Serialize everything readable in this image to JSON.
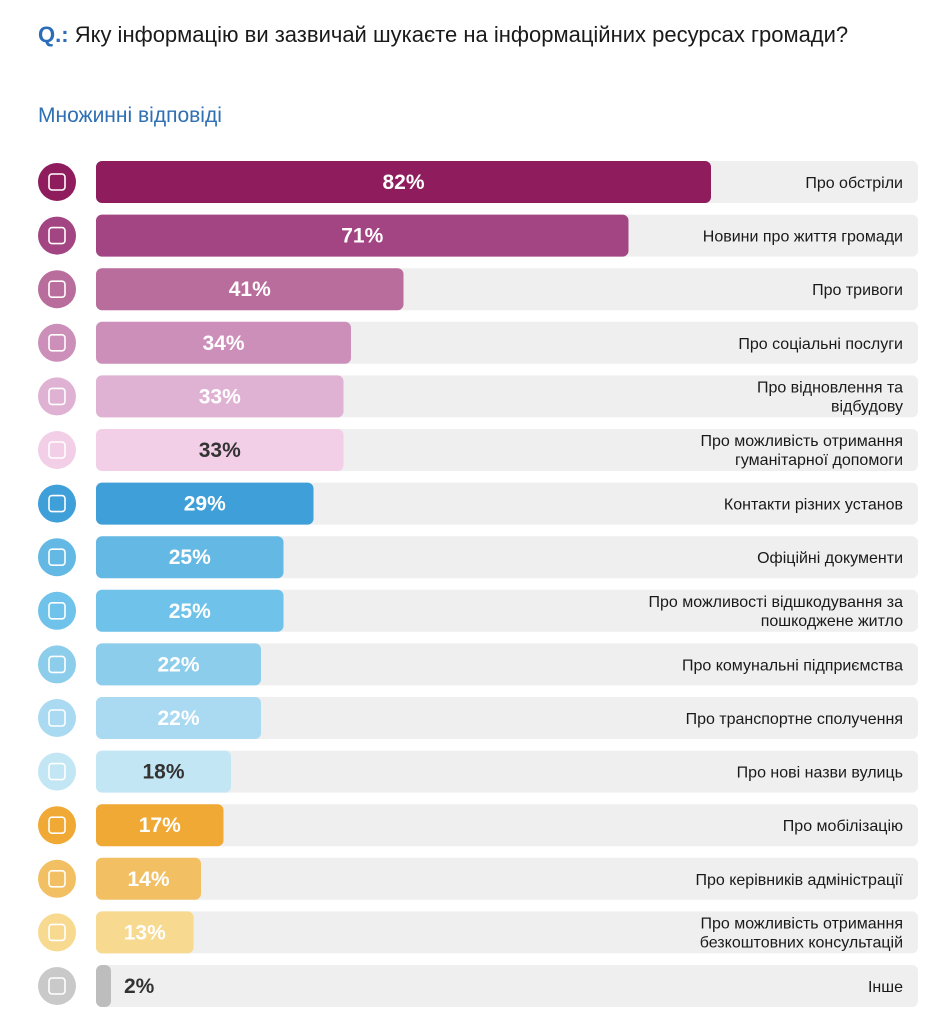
{
  "header": {
    "q_prefix": "Q.:",
    "question": "Яку інформацію ви зазвичай шукаєте на інформаційних ресурсах громади?",
    "subtitle": "Множинні відповіді"
  },
  "chart_data": {
    "type": "bar",
    "orientation": "horizontal",
    "xlim": [
      0,
      100
    ],
    "unit": "%",
    "grid": false,
    "categories": [
      "Про обстріли",
      "Новини про життя громади",
      "Про тривоги",
      "Про соціальні послуги",
      "Про відновлення та відбудову",
      "Про можливість отримання гуманітарної допомоги",
      "Контакти різних установ",
      "Офіційні документи",
      "Про можливості відшкодування за пошкоджене житло",
      "Про комунальні підприємства",
      "Про транспортне сполучення",
      "Про нові назви вулиць",
      "Про мобілізацію",
      "Про керівників адміністрації",
      "Про можливість отримання безкоштовних консультацій",
      "Інше"
    ],
    "label_lines": [
      [
        "Про обстріли"
      ],
      [
        "Новини про життя громади"
      ],
      [
        "Про тривоги"
      ],
      [
        "Про соціальні послуги"
      ],
      [
        "Про відновлення та",
        "відбудову"
      ],
      [
        "Про можливість отримання",
        "гуманітарної допомоги"
      ],
      [
        "Контакти різних установ"
      ],
      [
        "Офіційні документи"
      ],
      [
        "Про можливості відшкодування за",
        "пошкоджене житло"
      ],
      [
        "Про комунальні підприємства"
      ],
      [
        "Про транспортне сполучення"
      ],
      [
        "Про нові назви вулиць"
      ],
      [
        "Про мобілізацію"
      ],
      [
        "Про керівників адміністрації"
      ],
      [
        "Про можливість отримання",
        "безкоштовних консультацій"
      ],
      [
        "Інше"
      ]
    ],
    "values": [
      82,
      71,
      41,
      34,
      33,
      33,
      29,
      25,
      25,
      22,
      22,
      18,
      17,
      14,
      13,
      2
    ],
    "value_labels": [
      "82%",
      "71%",
      "41%",
      "34%",
      "33%",
      "33%",
      "29%",
      "25%",
      "25%",
      "22%",
      "22%",
      "18%",
      "17%",
      "14%",
      "13%",
      "2%"
    ],
    "bar_colors": [
      "#8f1d5e",
      "#a34583",
      "#b96d9c",
      "#cc8fba",
      "#dfb2d3",
      "#f2cfe7",
      "#3f9fd8",
      "#64b8e4",
      "#6fc2ea",
      "#8ccdeb",
      "#a9daf1",
      "#c3e6f5",
      "#f0a934",
      "#f2c063",
      "#f7d990",
      "#bdbdbd"
    ],
    "value_label_colors": [
      "#ffffff",
      "#ffffff",
      "#ffffff",
      "#ffffff",
      "#ffffff",
      "#333333",
      "#ffffff",
      "#ffffff",
      "#ffffff",
      "#ffffff",
      "#ffffff",
      "#333333",
      "#ffffff",
      "#ffffff",
      "#ffffff",
      "#333333"
    ],
    "icon_colors": [
      "#8f1d5e",
      "#a34583",
      "#b96d9c",
      "#cc8fba",
      "#dfb2d3",
      "#f2cfe7",
      "#3f9fd8",
      "#64b8e4",
      "#6fc2ea",
      "#8ccdeb",
      "#a9daf1",
      "#c3e6f5",
      "#f0a934",
      "#f2c063",
      "#f7d990",
      "#c9c9c9"
    ],
    "icons": [
      "missile-icon",
      "community-news-icon",
      "alarm-siren-icon",
      "social-care-icon",
      "reconstruction-crane-icon",
      "humanitarian-aid-icon",
      "contacts-grid-icon",
      "document-icon",
      "coins-compensation-icon",
      "utilities-icon",
      "bus-icon",
      "street-signpost-icon",
      "soldier-icon",
      "official-person-icon",
      "consultation-icon",
      "chat-bubbles-icon"
    ],
    "track_color": "#efefef"
  }
}
